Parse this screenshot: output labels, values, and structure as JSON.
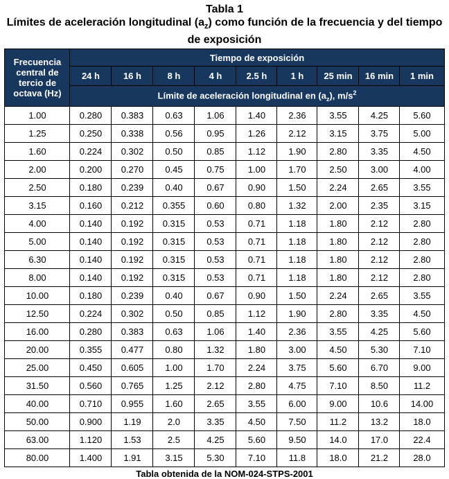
{
  "title": "Tabla 1",
  "subtitle_part1": "Límites de aceleración longitudinal (a",
  "subtitle_sub": "z",
  "subtitle_part2": ") como función de la frecuencia y del tiempo de exposición",
  "header": {
    "frequency": "Frecuencia central de tercio de octava (Hz)",
    "exposure_time": "Tiempo de exposición",
    "limit_part1": "Límite de aceleración longitudinal en (a",
    "limit_sub": "z",
    "limit_part2": "), m/s",
    "limit_sup": "2"
  },
  "columns": [
    "24 h",
    "16 h",
    "8 h",
    "4 h",
    "2.5 h",
    "1 h",
    "25 min",
    "16 min",
    "1 min"
  ],
  "rows": [
    [
      "1.00",
      "0.280",
      "0.383",
      "0.63",
      "1.06",
      "1.40",
      "2.36",
      "3.55",
      "4.25",
      "5.60"
    ],
    [
      "1.25",
      "0.250",
      "0.338",
      "0.56",
      "0.95",
      "1.26",
      "2.12",
      "3.15",
      "3.75",
      "5.00"
    ],
    [
      "1.60",
      "0.224",
      "0.302",
      "0.50",
      "0.85",
      "1.12",
      "1.90",
      "2.80",
      "3.35",
      "4.50"
    ],
    [
      "2.00",
      "0.200",
      "0.270",
      "0.45",
      "0.75",
      "1.00",
      "1.70",
      "2.50",
      "3.00",
      "4.00"
    ],
    [
      "2.50",
      "0.180",
      "0.239",
      "0.40",
      "0.67",
      "0.90",
      "1.50",
      "2.24",
      "2.65",
      "3.55"
    ],
    [
      "3.15",
      "0.160",
      "0.212",
      "0.355",
      "0.60",
      "0.80",
      "1.32",
      "2.00",
      "2.35",
      "3.15"
    ],
    [
      "4.00",
      "0.140",
      "0.192",
      "0.315",
      "0.53",
      "0.71",
      "1.18",
      "1.80",
      "2.12",
      "2.80"
    ],
    [
      "5.00",
      "0.140",
      "0.192",
      "0.315",
      "0.53",
      "0.71",
      "1.18",
      "1.80",
      "2.12",
      "2.80"
    ],
    [
      "6.30",
      "0.140",
      "0.192",
      "0.315",
      "0.53",
      "0.71",
      "1.18",
      "1.80",
      "2.12",
      "2.80"
    ],
    [
      "8.00",
      "0.140",
      "0.192",
      "0.315",
      "0.53",
      "0.71",
      "1.18",
      "1.80",
      "2.12",
      "2.80"
    ],
    [
      "10.00",
      "0.180",
      "0.239",
      "0.40",
      "0.67",
      "0.90",
      "1.50",
      "2.24",
      "2.65",
      "3.55"
    ],
    [
      "12.50",
      "0.224",
      "0.302",
      "0.50",
      "0.85",
      "1.12",
      "1.90",
      "2.80",
      "3.35",
      "4.50"
    ],
    [
      "16.00",
      "0.280",
      "0.383",
      "0.63",
      "1.06",
      "1.40",
      "2.36",
      "3.55",
      "4.25",
      "5.60"
    ],
    [
      "20.00",
      "0.355",
      "0.477",
      "0.80",
      "1.32",
      "1.80",
      "3.00",
      "4.50",
      "5.30",
      "7.10"
    ],
    [
      "25.00",
      "0.450",
      "0.605",
      "1.00",
      "1.70",
      "2.24",
      "3.75",
      "5.60",
      "6.70",
      "9.00"
    ],
    [
      "31.50",
      "0.560",
      "0.765",
      "1.25",
      "2.12",
      "2.80",
      "4.75",
      "7.10",
      "8.50",
      "11.2"
    ],
    [
      "40.00",
      "0.710",
      "0.955",
      "1.60",
      "2.65",
      "3.55",
      "6.00",
      "9.00",
      "10.6",
      "14.00"
    ],
    [
      "50.00",
      "0.900",
      "1.19",
      "2.0",
      "3.35",
      "4.50",
      "7.50",
      "11.2",
      "13.2",
      "18.0"
    ],
    [
      "63.00",
      "1.120",
      "1.53",
      "2.5",
      "4.25",
      "5.60",
      "9.50",
      "14.0",
      "17.0",
      "22.4"
    ],
    [
      "80.00",
      "1.400",
      "1.91",
      "3.15",
      "5.30",
      "7.10",
      "11.8",
      "18.0",
      "21.2",
      "28.0"
    ]
  ],
  "footer": "Tabla obtenida de la NOM-024-STPS-2001",
  "colors": {
    "header_bg": "#17375e",
    "header_text": "#ffffff"
  }
}
